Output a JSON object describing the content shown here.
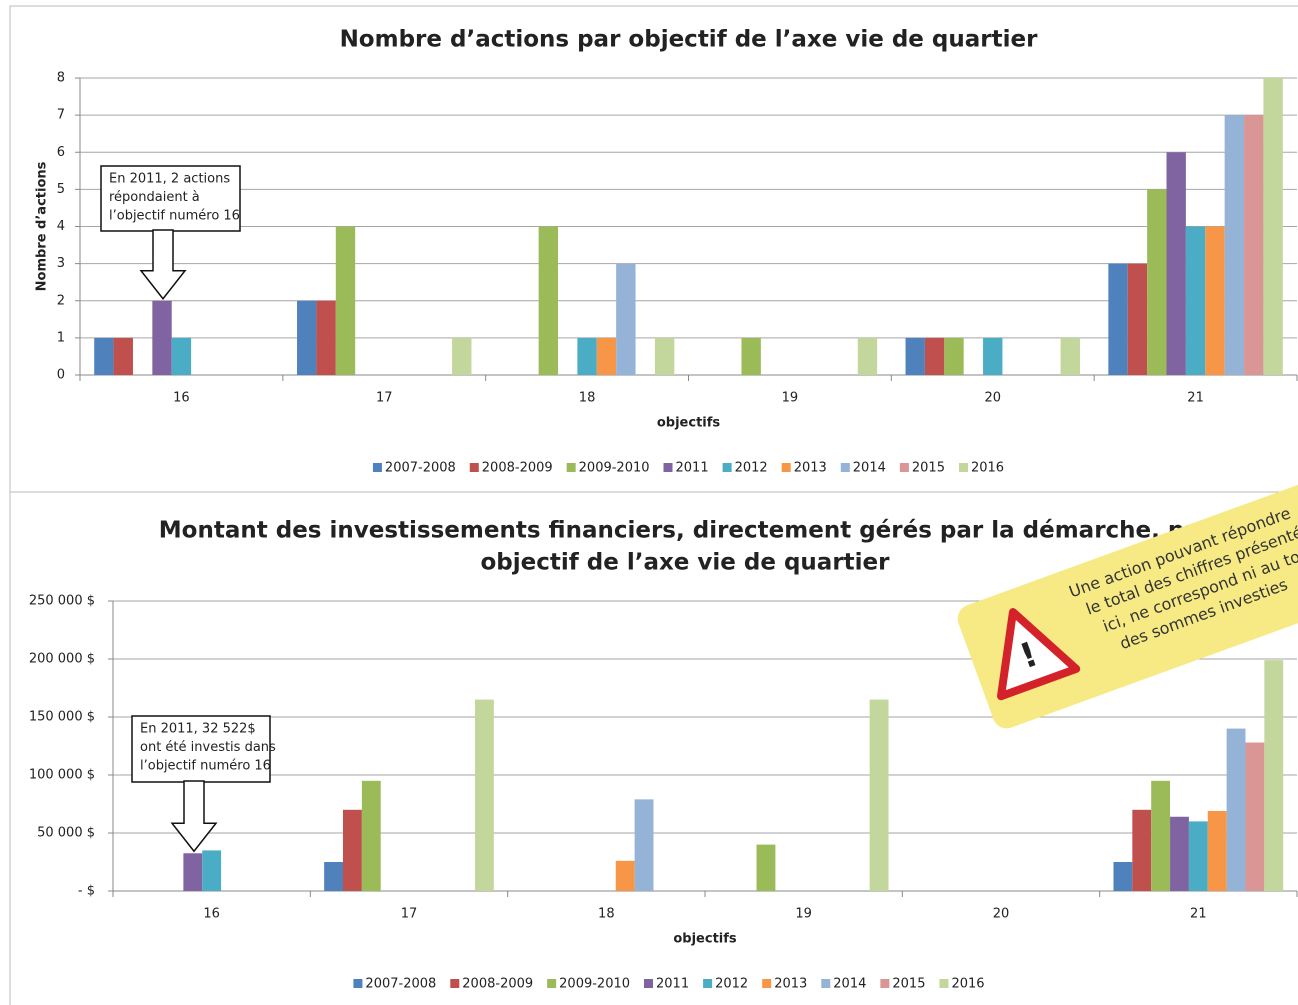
{
  "chart_data": [
    {
      "type": "bar",
      "title": "Nombre d’actions par objectif de l’axe vie de quartier",
      "y_label": "Nombre d’actions",
      "x_label": "objectifs",
      "categories": [
        "16",
        "17",
        "18",
        "19",
        "20",
        "21"
      ],
      "ylim": [
        0,
        8
      ],
      "yticks": [
        0,
        1,
        2,
        3,
        4,
        5,
        6,
        7,
        8
      ],
      "grid": true,
      "annotation": [
        "En 2011, 2 actions",
        "répondaient à",
        "l’objectif numéro 16"
      ],
      "series": [
        {
          "name": "2007-2008",
          "color": "#4f81bd",
          "values": [
            1,
            2,
            0,
            0,
            1,
            3
          ]
        },
        {
          "name": "2008-2009",
          "color": "#c0504d",
          "values": [
            1,
            2,
            0,
            0,
            1,
            3
          ]
        },
        {
          "name": "2009-2010",
          "color": "#9bbb59",
          "values": [
            0,
            4,
            4,
            1,
            1,
            5
          ]
        },
        {
          "name": "2011",
          "color": "#8064a2",
          "values": [
            2,
            0,
            0,
            0,
            0,
            6
          ]
        },
        {
          "name": "2012",
          "color": "#4bacc6",
          "values": [
            1,
            0,
            1,
            0,
            1,
            4
          ]
        },
        {
          "name": "2013",
          "color": "#f79646",
          "values": [
            0,
            0,
            1,
            0,
            0,
            4
          ]
        },
        {
          "name": "2014",
          "color": "#95b3d7",
          "values": [
            0,
            0,
            3,
            0,
            0,
            7
          ]
        },
        {
          "name": "2015",
          "color": "#d99694",
          "values": [
            0,
            0,
            0,
            0,
            0,
            7
          ]
        },
        {
          "name": "2016",
          "color": "#c3d69b",
          "values": [
            0,
            1,
            1,
            1,
            1,
            8
          ]
        }
      ]
    },
    {
      "type": "bar",
      "title": [
        "Montant des investissements financiers, directement gérés par la démarche, par",
        "objectif de l’axe vie de quartier"
      ],
      "x_label": "objectifs",
      "categories": [
        "16",
        "17",
        "18",
        "19",
        "20",
        "21"
      ],
      "ylim": [
        0,
        250000
      ],
      "yticks": [
        {
          "value": 0,
          "label": "- $"
        },
        {
          "value": 50000,
          "label": "50 000 $"
        },
        {
          "value": 100000,
          "label": "100 000 $"
        },
        {
          "value": 150000,
          "label": "150 000 $"
        },
        {
          "value": 200000,
          "label": "200 000 $"
        },
        {
          "value": 250000,
          "label": "250 000 $"
        }
      ],
      "grid": true,
      "annotation": [
        "En 2011, 32 522$",
        "ont été investis dans",
        "l’objectif numéro 16"
      ],
      "series": [
        {
          "name": "2007-2008",
          "color": "#4f81bd",
          "values": [
            0,
            25000,
            0,
            0,
            0,
            25000
          ]
        },
        {
          "name": "2008-2009",
          "color": "#c0504d",
          "values": [
            0,
            70000,
            0,
            0,
            0,
            70000
          ]
        },
        {
          "name": "2009-2010",
          "color": "#9bbb59",
          "values": [
            0,
            95000,
            0,
            40000,
            0,
            95000
          ]
        },
        {
          "name": "2011",
          "color": "#8064a2",
          "values": [
            32522,
            0,
            0,
            0,
            0,
            64000
          ]
        },
        {
          "name": "2012",
          "color": "#4bacc6",
          "values": [
            35000,
            0,
            0,
            0,
            0,
            60000
          ]
        },
        {
          "name": "2013",
          "color": "#f79646",
          "values": [
            0,
            0,
            26000,
            0,
            0,
            69000
          ]
        },
        {
          "name": "2014",
          "color": "#95b3d7",
          "values": [
            0,
            0,
            79000,
            0,
            0,
            140000
          ]
        },
        {
          "name": "2015",
          "color": "#d99694",
          "values": [
            0,
            0,
            0,
            0,
            0,
            128000
          ]
        },
        {
          "name": "2016",
          "color": "#c3d69b",
          "values": [
            0,
            165000,
            0,
            165000,
            0,
            199000
          ]
        }
      ]
    }
  ],
  "notice": {
    "lines": [
      "Une action pouvant répondre",
      "le total des chiffres présenté",
      "ici, ne correspond ni au tot",
      "des sommes investies"
    ]
  }
}
